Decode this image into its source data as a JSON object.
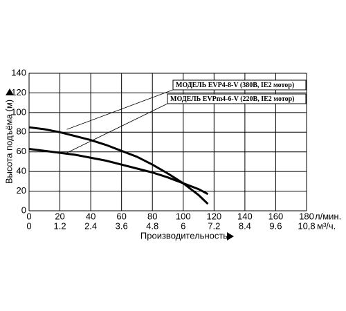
{
  "chart_data": {
    "type": "line",
    "y_label": "Высота подъёма (м)",
    "x_label": "Производительность",
    "x_unit": "л/мин.",
    "x2_unit": "м³/ч.",
    "x": [
      0,
      10,
      20,
      30,
      40,
      50,
      60,
      70,
      80,
      90,
      100,
      110,
      116
    ],
    "series": [
      {
        "name": "МОДЕЛЬ EVP4-8-V (380В, IE2 мотор)",
        "color": "#000000",
        "values": [
          85,
          83,
          80,
          76,
          72,
          67,
          61,
          55,
          47,
          38,
          28,
          16,
          7
        ]
      },
      {
        "name": "МОДЕЛЬ EVPm4-6-V (220В, IE2 мотор)",
        "color": "#000000",
        "values": [
          63,
          61,
          59,
          57,
          54,
          51,
          47,
          43,
          39,
          34,
          28,
          22,
          17
        ]
      }
    ],
    "xlim": [
      0,
      180
    ],
    "xticks": [
      0,
      20,
      40,
      60,
      80,
      100,
      120,
      140,
      160,
      180
    ],
    "x2lim": [
      0,
      10.8
    ],
    "x2ticks": [
      0,
      1.2,
      2.4,
      3.6,
      4.8,
      6,
      7.2,
      8.4,
      9.6,
      {
        "value": 10.8,
        "label": "10,8"
      }
    ],
    "ylim": [
      0,
      140
    ],
    "yticks": [
      0,
      20,
      40,
      60,
      80,
      100,
      120,
      140
    ],
    "grid": true
  }
}
